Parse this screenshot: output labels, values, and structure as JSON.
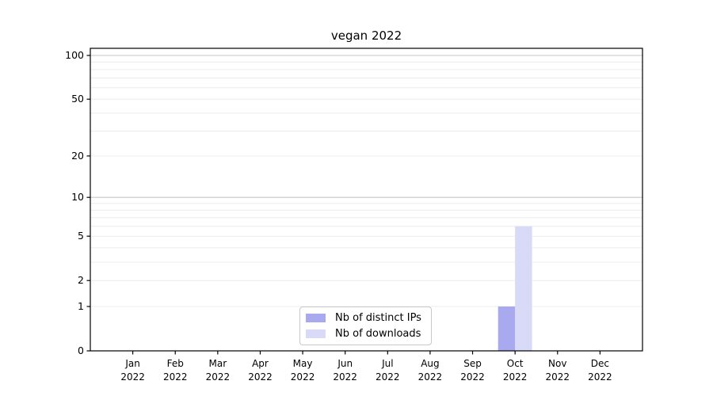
{
  "chart_data": {
    "type": "bar",
    "title": "vegan 2022",
    "categories": [
      "Jan",
      "Feb",
      "Mar",
      "Apr",
      "May",
      "Jun",
      "Jul",
      "Aug",
      "Sep",
      "Oct",
      "Nov",
      "Dec"
    ],
    "year_label": "2022",
    "series": [
      {
        "name": "Nb of distinct IPs",
        "color": "#a9a9f0",
        "values": [
          0,
          0,
          0,
          0,
          0,
          0,
          0,
          0,
          0,
          1,
          0,
          0
        ]
      },
      {
        "name": "Nb of downloads",
        "color": "#d9d9f8",
        "values": [
          0,
          0,
          0,
          0,
          0,
          0,
          0,
          0,
          0,
          6,
          0,
          0
        ]
      }
    ],
    "y_axis": {
      "scale": "log1p",
      "ticks": [
        0,
        1,
        2,
        5,
        10,
        20,
        50,
        100
      ],
      "range": [
        0,
        112
      ]
    },
    "x_axis": {
      "labels_line1": [
        "Jan",
        "Feb",
        "Mar",
        "Apr",
        "May",
        "Jun",
        "Jul",
        "Aug",
        "Sep",
        "Oct",
        "Nov",
        "Dec"
      ],
      "labels_line2": "2022"
    },
    "grid": "both",
    "legend": {
      "position": "lower center"
    },
    "colors": {
      "frame": "#000000",
      "grid_minor": "#ececec",
      "grid_major": "#c6c6c6",
      "text": "#000000"
    }
  }
}
